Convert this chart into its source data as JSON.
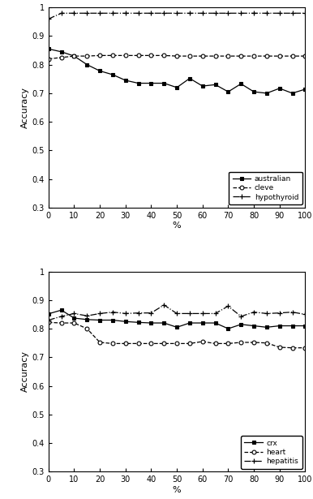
{
  "x": [
    0,
    5,
    10,
    15,
    20,
    25,
    30,
    35,
    40,
    45,
    50,
    55,
    60,
    65,
    70,
    75,
    80,
    85,
    90,
    95,
    100
  ],
  "australian": [
    0.855,
    0.845,
    0.83,
    0.8,
    0.778,
    0.765,
    0.745,
    0.735,
    0.735,
    0.735,
    0.72,
    0.752,
    0.725,
    0.73,
    0.705,
    0.733,
    0.705,
    0.7,
    0.717,
    0.7,
    0.714
  ],
  "cleve": [
    0.82,
    0.825,
    0.83,
    0.83,
    0.832,
    0.832,
    0.832,
    0.832,
    0.832,
    0.832,
    0.83,
    0.83,
    0.83,
    0.83,
    0.83,
    0.83,
    0.83,
    0.83,
    0.83,
    0.83,
    0.83
  ],
  "hypothyroid": [
    0.96,
    0.98,
    0.98,
    0.98,
    0.98,
    0.98,
    0.98,
    0.98,
    0.98,
    0.98,
    0.98,
    0.98,
    0.98,
    0.98,
    0.98,
    0.98,
    0.98,
    0.98,
    0.98,
    0.98,
    0.98
  ],
  "crx": [
    0.852,
    0.865,
    0.837,
    0.832,
    0.83,
    0.83,
    0.825,
    0.822,
    0.82,
    0.82,
    0.805,
    0.82,
    0.82,
    0.82,
    0.8,
    0.815,
    0.81,
    0.805,
    0.81,
    0.81,
    0.81
  ],
  "heart": [
    0.822,
    0.82,
    0.82,
    0.8,
    0.752,
    0.748,
    0.748,
    0.748,
    0.748,
    0.748,
    0.748,
    0.748,
    0.755,
    0.748,
    0.748,
    0.752,
    0.752,
    0.75,
    0.735,
    0.733,
    0.733
  ],
  "hepatitis": [
    0.83,
    0.843,
    0.853,
    0.845,
    0.853,
    0.858,
    0.853,
    0.855,
    0.855,
    0.883,
    0.853,
    0.853,
    0.853,
    0.853,
    0.879,
    0.843,
    0.858,
    0.853,
    0.855,
    0.858,
    0.85
  ],
  "ylabel": "Accuracy",
  "xlabel": "%",
  "ylim": [
    0.3,
    1.0
  ],
  "yticks": [
    0.3,
    0.4,
    0.5,
    0.6,
    0.7,
    0.8,
    0.9,
    1.0
  ],
  "xticks": [
    0,
    10,
    20,
    30,
    40,
    50,
    60,
    70,
    80,
    90,
    100
  ],
  "legend1": [
    "australian",
    "cleve",
    "hypothyroid"
  ],
  "legend2": [
    "crx",
    "heart",
    "hepatitis"
  ],
  "figsize": [
    3.86,
    6.15
  ],
  "dpi": 100
}
